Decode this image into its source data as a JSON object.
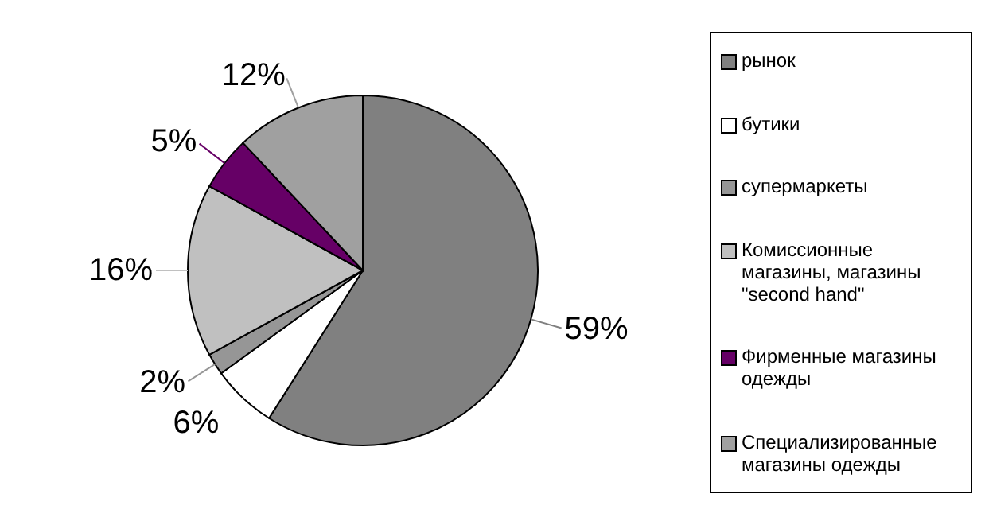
{
  "chart_data": {
    "type": "pie",
    "categories": [
      "рынок",
      "бутики",
      "супермаркеты",
      "Комиссионные магазины, магазины \"second hand\"",
      "Фирменные магазины одежды",
      "Специализированные магазины одежды"
    ],
    "values": [
      59,
      6,
      2,
      16,
      5,
      12
    ],
    "colors": [
      "#808080",
      "#ffffff",
      "#969696",
      "#c0c0c0",
      "#660066",
      "#a0a0a0"
    ],
    "value_labels": [
      "59%",
      "6%",
      "2%",
      "16%",
      "5%",
      "12%"
    ],
    "legend": "right"
  }
}
